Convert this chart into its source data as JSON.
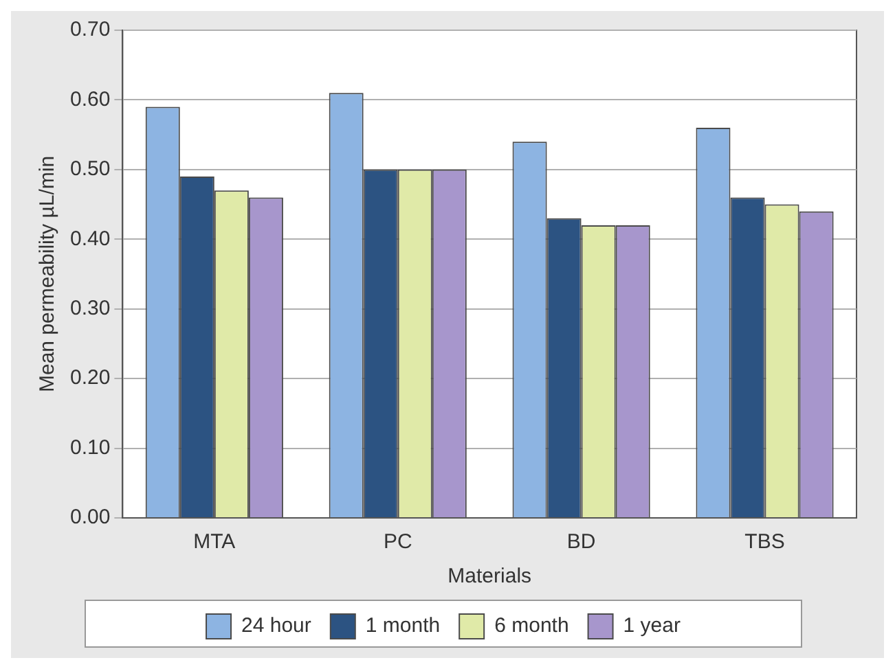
{
  "chart_data": {
    "type": "bar",
    "xlabel": "Materials",
    "ylabel": "Mean permeability µL/min",
    "categories": [
      "MTA",
      "PC",
      "BD",
      "TBS"
    ],
    "series": [
      {
        "name": "24 hour",
        "color": "#8db4e2",
        "values": [
          0.59,
          0.61,
          0.54,
          0.56
        ]
      },
      {
        "name": "1 month",
        "color": "#2c5382",
        "values": [
          0.49,
          0.5,
          0.43,
          0.46
        ]
      },
      {
        "name": "6 month",
        "color": "#e0eaa8",
        "values": [
          0.47,
          0.5,
          0.42,
          0.45
        ]
      },
      {
        "name": "1 year",
        "color": "#a796cc",
        "values": [
          0.46,
          0.5,
          0.42,
          0.44
        ]
      }
    ],
    "ylim": [
      0,
      0.7
    ],
    "yticks": [
      {
        "value": 0,
        "label": "0.00"
      },
      {
        "value": 0.1,
        "label": "0.10"
      },
      {
        "value": 0.2,
        "label": "0.20"
      },
      {
        "value": 0.3,
        "label": "0.30"
      },
      {
        "value": 0.4,
        "label": "0.40"
      },
      {
        "value": 0.5,
        "label": "0.50"
      },
      {
        "value": 0.6,
        "label": "0.60"
      },
      {
        "value": 0.7,
        "label": "0.70"
      }
    ],
    "grid": "y",
    "legend": "bottom"
  }
}
